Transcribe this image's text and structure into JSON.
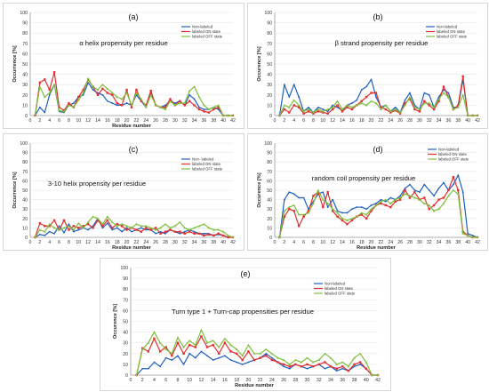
{
  "colors": {
    "nonlabeled": "#1f5fbf",
    "on": "#e03030",
    "off": "#7dbf3a",
    "grid": "#e6e6e6",
    "axis": "#9a9a9a"
  },
  "chart_data": [
    {
      "type": "line",
      "panel_label": "(a)",
      "title": "α helix propensity per residue",
      "xlabel": "Residue number",
      "ylabel": "Occurrence [%]",
      "ylim": [
        0,
        100
      ],
      "yticks": [
        0,
        10,
        20,
        30,
        40,
        50,
        60,
        70,
        80,
        90,
        100
      ],
      "xlim": [
        0,
        42
      ],
      "xticks": [
        0,
        2,
        4,
        6,
        8,
        10,
        12,
        14,
        16,
        18,
        20,
        22,
        24,
        26,
        28,
        30,
        32,
        34,
        36,
        38,
        40,
        42
      ],
      "legend_position": "top-right",
      "x": [
        1,
        2,
        3,
        4,
        5,
        6,
        7,
        8,
        9,
        10,
        11,
        12,
        13,
        14,
        15,
        16,
        17,
        18,
        19,
        20,
        21,
        22,
        23,
        24,
        25,
        26,
        27,
        28,
        29,
        30,
        31,
        32,
        33,
        34,
        35,
        36,
        37,
        38,
        39,
        40,
        41,
        42
      ],
      "series": [
        {
          "name": "Non-labeled",
          "values": [
            0,
            8,
            3,
            20,
            30,
            4,
            3,
            10,
            12,
            18,
            20,
            32,
            25,
            22,
            20,
            14,
            12,
            10,
            10,
            12,
            10,
            20,
            14,
            8,
            22,
            10,
            8,
            10,
            14,
            12,
            14,
            10,
            20,
            16,
            8,
            6,
            6,
            8,
            6,
            0,
            0,
            0
          ]
        },
        {
          "name": "labeled ON state",
          "values": [
            0,
            32,
            35,
            25,
            42,
            8,
            5,
            12,
            8,
            18,
            25,
            35,
            28,
            20,
            26,
            22,
            20,
            12,
            10,
            25,
            8,
            25,
            14,
            10,
            24,
            10,
            8,
            8,
            16,
            10,
            14,
            10,
            14,
            10,
            6,
            4,
            3,
            6,
            8,
            0,
            0,
            0
          ]
        },
        {
          "name": "labeled OFF state",
          "values": [
            0,
            28,
            18,
            22,
            30,
            5,
            4,
            10,
            8,
            15,
            22,
            36,
            28,
            25,
            30,
            26,
            22,
            18,
            16,
            22,
            10,
            22,
            16,
            8,
            20,
            10,
            8,
            6,
            14,
            10,
            12,
            12,
            24,
            28,
            18,
            10,
            6,
            8,
            10,
            0,
            0,
            0
          ]
        }
      ]
    },
    {
      "type": "line",
      "panel_label": "(b)",
      "title": "β strand propensity per residue",
      "xlabel": "",
      "ylabel": "Occurence [%]",
      "ylim": [
        0,
        100
      ],
      "yticks": [
        0,
        10,
        20,
        30,
        40,
        50,
        60,
        70,
        80,
        90,
        100
      ],
      "xlim": [
        0,
        42
      ],
      "xticks": [
        0,
        2,
        4,
        6,
        8,
        10,
        12,
        14,
        16,
        18,
        20,
        22,
        24,
        26,
        28,
        30,
        32,
        34,
        36,
        38,
        40,
        42
      ],
      "legend_position": "top-right",
      "x": [
        1,
        2,
        3,
        4,
        5,
        6,
        7,
        8,
        9,
        10,
        11,
        12,
        13,
        14,
        15,
        16,
        17,
        18,
        19,
        20,
        21,
        22,
        23,
        24,
        25,
        26,
        27,
        28,
        29,
        30,
        31,
        32,
        33,
        34,
        35,
        36,
        37,
        38,
        39,
        40,
        41,
        42
      ],
      "series": [
        {
          "name": "Non-labeled",
          "values": [
            0,
            30,
            18,
            30,
            18,
            4,
            8,
            3,
            8,
            6,
            4,
            10,
            8,
            5,
            10,
            12,
            15,
            25,
            28,
            35,
            18,
            8,
            10,
            4,
            8,
            3,
            15,
            22,
            10,
            6,
            22,
            20,
            8,
            18,
            25,
            22,
            8,
            8,
            35,
            0,
            0,
            0
          ]
        },
        {
          "name": "labeled ON state",
          "values": [
            0,
            6,
            3,
            10,
            8,
            2,
            4,
            2,
            4,
            3,
            2,
            6,
            10,
            4,
            8,
            6,
            10,
            14,
            18,
            22,
            22,
            8,
            6,
            3,
            5,
            2,
            12,
            16,
            6,
            4,
            14,
            10,
            6,
            14,
            28,
            18,
            6,
            10,
            38,
            0,
            0,
            0
          ]
        },
        {
          "name": "labeled OFF state",
          "values": [
            0,
            10,
            8,
            15,
            10,
            4,
            6,
            3,
            6,
            4,
            6,
            8,
            14,
            6,
            10,
            8,
            10,
            12,
            10,
            14,
            12,
            6,
            10,
            4,
            6,
            3,
            10,
            18,
            8,
            6,
            12,
            12,
            8,
            16,
            22,
            18,
            6,
            8,
            20,
            0,
            0,
            0
          ]
        }
      ]
    },
    {
      "type": "line",
      "panel_label": "(c)",
      "title": "3-10 helix propensity per residue",
      "xlabel": "Residue number",
      "ylabel": "Occurrence [%]",
      "ylim": [
        0,
        100
      ],
      "yticks": [
        0,
        10,
        20,
        30,
        40,
        50,
        60,
        70,
        80,
        90,
        100
      ],
      "xlim": [
        0,
        42
      ],
      "xticks": [
        0,
        2,
        4,
        6,
        8,
        10,
        12,
        14,
        16,
        18,
        20,
        22,
        24,
        26,
        28,
        30,
        32,
        34,
        36,
        38,
        40,
        42
      ],
      "legend_position": "top-right",
      "x": [
        1,
        2,
        3,
        4,
        5,
        6,
        7,
        8,
        9,
        10,
        11,
        12,
        13,
        14,
        15,
        16,
        17,
        18,
        19,
        20,
        21,
        22,
        23,
        24,
        25,
        26,
        27,
        28,
        29,
        30,
        31,
        32,
        33,
        34,
        35,
        36,
        37,
        38,
        39,
        40,
        41,
        42
      ],
      "series": [
        {
          "name": "Non- labeled",
          "values": [
            0,
            3,
            2,
            6,
            4,
            12,
            5,
            14,
            6,
            8,
            10,
            8,
            12,
            20,
            10,
            15,
            8,
            10,
            6,
            10,
            6,
            8,
            10,
            8,
            8,
            4,
            6,
            4,
            8,
            6,
            4,
            6,
            8,
            6,
            4,
            4,
            4,
            2,
            3,
            2,
            0,
            0
          ]
        },
        {
          "name": "labeled ON state",
          "values": [
            0,
            15,
            12,
            12,
            18,
            8,
            18,
            8,
            12,
            10,
            12,
            14,
            10,
            18,
            12,
            18,
            10,
            14,
            12,
            8,
            10,
            8,
            6,
            10,
            8,
            10,
            4,
            6,
            8,
            6,
            6,
            4,
            6,
            4,
            4,
            2,
            3,
            2,
            4,
            2,
            0,
            0
          ]
        },
        {
          "name": "labeled OFF state",
          "values": [
            0,
            8,
            6,
            14,
            10,
            8,
            10,
            12,
            8,
            15,
            10,
            16,
            22,
            20,
            14,
            22,
            16,
            12,
            14,
            12,
            10,
            14,
            12,
            12,
            10,
            8,
            10,
            14,
            10,
            12,
            16,
            10,
            8,
            10,
            12,
            14,
            10,
            8,
            8,
            6,
            2,
            0
          ]
        }
      ]
    },
    {
      "type": "line",
      "panel_label": "(d)",
      "title": "random coil propensity per residue",
      "xlabel": "Residue number",
      "ylabel": "Occurence [%]",
      "ylim": [
        0,
        100
      ],
      "yticks": [
        0,
        10,
        20,
        30,
        40,
        50,
        60,
        70,
        80,
        90,
        100
      ],
      "xlim": [
        0,
        42
      ],
      "xticks": [
        0,
        2,
        4,
        6,
        8,
        10,
        12,
        14,
        16,
        18,
        20,
        22,
        24,
        26,
        28,
        30,
        32,
        34,
        36,
        38,
        40,
        42
      ],
      "legend_position": "top-right",
      "x": [
        1,
        2,
        3,
        4,
        5,
        6,
        7,
        8,
        9,
        10,
        11,
        12,
        13,
        14,
        15,
        16,
        17,
        18,
        19,
        20,
        21,
        22,
        23,
        24,
        25,
        26,
        27,
        28,
        29,
        30,
        31,
        32,
        33,
        34,
        35,
        36,
        37,
        38,
        39,
        40,
        41,
        42
      ],
      "series": [
        {
          "name": "Non-labeled",
          "values": [
            0,
            40,
            48,
            46,
            42,
            42,
            30,
            38,
            46,
            48,
            32,
            40,
            28,
            26,
            26,
            30,
            32,
            32,
            30,
            34,
            36,
            40,
            38,
            42,
            40,
            44,
            52,
            56,
            50,
            48,
            56,
            50,
            44,
            52,
            58,
            50,
            56,
            66,
            48,
            4,
            2,
            0
          ]
        },
        {
          "name": "labeled ON state",
          "values": [
            0,
            22,
            30,
            28,
            12,
            22,
            28,
            44,
            48,
            32,
            48,
            28,
            22,
            18,
            14,
            18,
            22,
            24,
            20,
            28,
            34,
            36,
            34,
            32,
            38,
            40,
            50,
            42,
            48,
            40,
            42,
            30,
            34,
            40,
            42,
            50,
            64,
            50,
            6,
            2,
            0,
            0
          ]
        },
        {
          "name": "labeled OFF state",
          "values": [
            0,
            28,
            32,
            34,
            24,
            24,
            26,
            36,
            50,
            40,
            36,
            30,
            26,
            20,
            18,
            20,
            22,
            26,
            24,
            30,
            34,
            38,
            40,
            36,
            40,
            42,
            46,
            44,
            42,
            40,
            36,
            34,
            28,
            30,
            36,
            44,
            50,
            46,
            4,
            2,
            0,
            0
          ]
        }
      ]
    },
    {
      "type": "line",
      "panel_label": "(e)",
      "title": "Turn type 1 + Turn-cap propensities per residue",
      "xlabel": "Residue number",
      "ylabel": "Occurence [%]",
      "ylim": [
        0,
        100
      ],
      "yticks": [
        0,
        10,
        20,
        30,
        40,
        50,
        60,
        70,
        80,
        90,
        100
      ],
      "xlim": [
        0,
        42
      ],
      "xticks": [
        0,
        2,
        4,
        6,
        8,
        10,
        12,
        14,
        16,
        18,
        20,
        22,
        24,
        26,
        28,
        30,
        32,
        34,
        36,
        38,
        40,
        42
      ],
      "legend_position": "top-right",
      "x": [
        1,
        2,
        3,
        4,
        5,
        6,
        7,
        8,
        9,
        10,
        11,
        12,
        13,
        14,
        15,
        16,
        17,
        18,
        19,
        20,
        21,
        22,
        23,
        24,
        25,
        26,
        27,
        28,
        29,
        30,
        31,
        32,
        33,
        34,
        35,
        36,
        37,
        38,
        39,
        40,
        41,
        42
      ],
      "series": [
        {
          "name": "Non-labeled",
          "values": [
            0,
            6,
            6,
            12,
            8,
            16,
            14,
            18,
            10,
            20,
            16,
            22,
            18,
            14,
            16,
            18,
            14,
            12,
            10,
            12,
            14,
            16,
            20,
            16,
            12,
            8,
            6,
            10,
            8,
            6,
            8,
            10,
            6,
            8,
            4,
            6,
            4,
            8,
            10,
            6,
            0,
            0
          ]
        },
        {
          "name": "labeled ON state",
          "values": [
            0,
            25,
            22,
            34,
            22,
            26,
            18,
            30,
            20,
            28,
            26,
            36,
            26,
            28,
            20,
            30,
            22,
            20,
            14,
            22,
            14,
            16,
            18,
            14,
            12,
            10,
            8,
            10,
            8,
            10,
            8,
            10,
            12,
            8,
            6,
            8,
            4,
            10,
            12,
            6,
            0,
            0
          ]
        },
        {
          "name": "labeled OFF state",
          "values": [
            0,
            24,
            30,
            40,
            30,
            24,
            20,
            35,
            26,
            32,
            28,
            42,
            30,
            32,
            26,
            34,
            28,
            24,
            18,
            28,
            20,
            20,
            24,
            20,
            16,
            14,
            10,
            14,
            12,
            16,
            12,
            14,
            20,
            16,
            10,
            12,
            8,
            16,
            20,
            12,
            0,
            0
          ]
        }
      ]
    }
  ]
}
